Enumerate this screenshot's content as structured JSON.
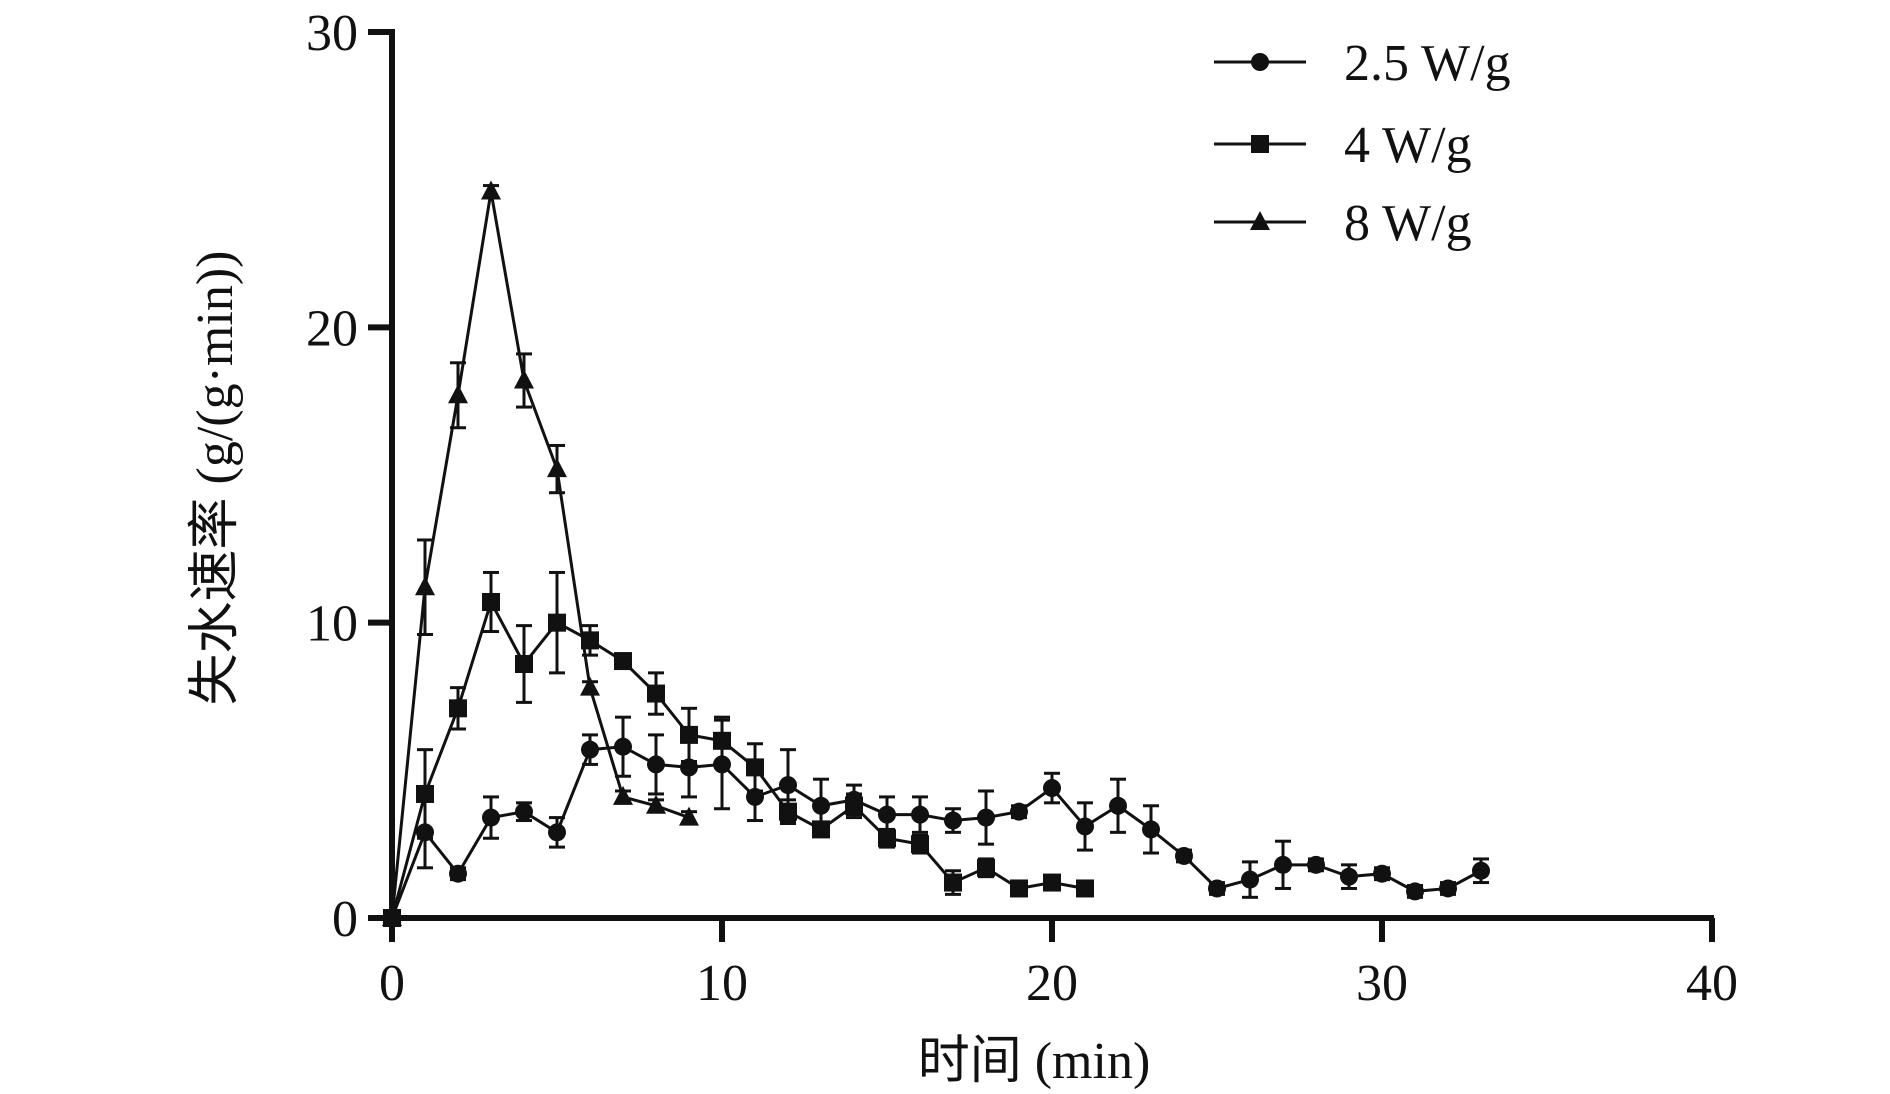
{
  "chart_data": {
    "type": "line",
    "xlabel": "时间 (min)",
    "ylabel": "失水速率 (g/(g·min))",
    "xlim": [
      0,
      40
    ],
    "ylim": [
      0,
      30
    ],
    "x_ticks": [
      "0",
      "10",
      "20",
      "30",
      "40"
    ],
    "y_ticks": [
      "0",
      "10",
      "20",
      "30"
    ],
    "grid": false,
    "legend_position": "top-right",
    "error_bars": true,
    "series": [
      {
        "name": "2.5 W/g",
        "marker": "circle",
        "x": [
          0,
          1,
          2,
          3,
          4,
          5,
          6,
          7,
          8,
          9,
          10,
          11,
          12,
          13,
          14,
          15,
          16,
          17,
          18,
          19,
          20,
          21,
          22,
          23,
          24,
          25,
          26,
          27,
          28,
          29,
          30,
          31,
          32,
          33
        ],
        "y": [
          0,
          2.9,
          1.5,
          3.4,
          3.6,
          2.9,
          5.7,
          5.8,
          5.2,
          5.1,
          5.2,
          4.1,
          4.5,
          3.8,
          4.0,
          3.5,
          3.5,
          3.3,
          3.4,
          3.6,
          4.4,
          3.1,
          3.8,
          3.0,
          2.1,
          1.0,
          1.3,
          1.8,
          1.8,
          1.4,
          1.5,
          0.9,
          1.0,
          1.6
        ],
        "err": [
          0,
          1.2,
          0.2,
          0.7,
          0.3,
          0.5,
          0.5,
          1.0,
          1.0,
          1.0,
          1.5,
          0.8,
          1.2,
          0.9,
          0.5,
          0.6,
          0.6,
          0.4,
          0.9,
          0.2,
          0.5,
          0.8,
          0.9,
          0.8,
          0.2,
          0.2,
          0.6,
          0.8,
          0.2,
          0.4,
          0.2,
          0.2,
          0.2,
          0.4
        ]
      },
      {
        "name": "4 W/g",
        "marker": "square",
        "x": [
          0,
          1,
          2,
          3,
          4,
          5,
          6,
          7,
          8,
          9,
          10,
          11,
          12,
          13,
          14,
          15,
          16,
          17,
          18,
          19,
          20,
          21
        ],
        "y": [
          0,
          4.2,
          7.1,
          10.7,
          8.6,
          10.0,
          9.4,
          8.7,
          7.6,
          6.2,
          6.0,
          5.1,
          3.6,
          3.0,
          3.8,
          2.7,
          2.5,
          1.2,
          1.7,
          1.0,
          1.2,
          1.0
        ],
        "err": [
          0,
          1.5,
          0.7,
          1.0,
          1.3,
          1.7,
          0.5,
          0.2,
          0.7,
          0.9,
          0.8,
          0.8,
          0.4,
          0.2,
          0.4,
          0.3,
          0.3,
          0.4,
          0.3,
          0.2,
          0.2,
          0.2
        ]
      },
      {
        "name": "8 W/g",
        "marker": "triangle",
        "x": [
          0,
          1,
          2,
          3,
          4,
          5,
          6,
          7,
          8,
          9
        ],
        "y": [
          0,
          11.2,
          17.7,
          24.6,
          18.2,
          15.2,
          7.8,
          4.1,
          3.8,
          3.4
        ],
        "err": [
          0,
          1.6,
          1.1,
          0.2,
          0.9,
          0.8,
          0.2,
          0.2,
          0.2,
          0.2
        ]
      }
    ]
  },
  "colors": {
    "line": "#111111",
    "background": "#ffffff"
  }
}
